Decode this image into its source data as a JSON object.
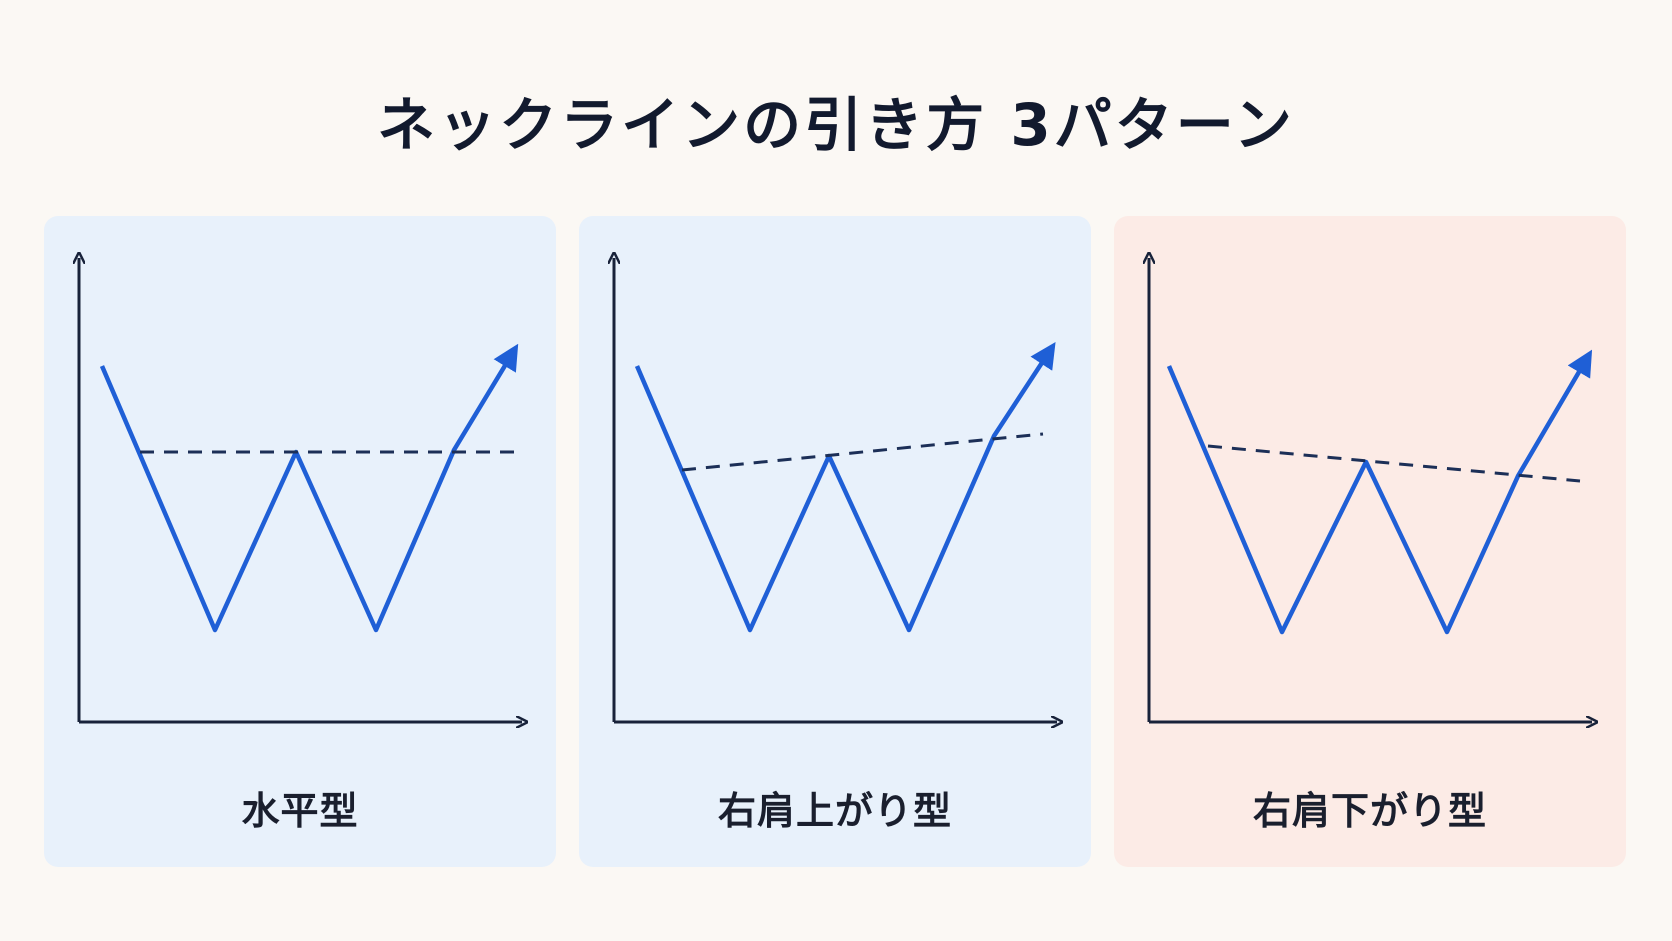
{
  "title": "ネックラインの引き方 3パターン",
  "colors": {
    "price_line": "#1f5fd6",
    "neckline": "#1c2f57",
    "axis": "#18223a",
    "panel_blue": "#e8f1fb",
    "panel_pink": "#fcebe6"
  },
  "patterns": [
    {
      "label": "水平型",
      "neckline": "horizontal"
    },
    {
      "label": "右肩上がり型",
      "neckline": "rising"
    },
    {
      "label": "右肩下がり型",
      "neckline": "falling"
    }
  ]
}
